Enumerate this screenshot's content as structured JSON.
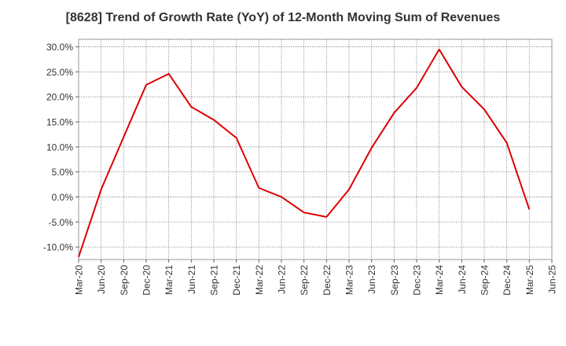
{
  "chart_data": {
    "type": "line",
    "title": "[8628]  Trend of Growth Rate (YoY) of 12-Month Moving Sum of Revenues",
    "xlabel": "",
    "ylabel": "",
    "x_tick_labels": [
      "Mar-20",
      "Jun-20",
      "Sep-20",
      "Dec-20",
      "Mar-21",
      "Jun-21",
      "Sep-21",
      "Dec-21",
      "Mar-22",
      "Jun-22",
      "Sep-22",
      "Dec-22",
      "Mar-23",
      "Jun-23",
      "Sep-23",
      "Dec-23",
      "Mar-24",
      "Jun-24",
      "Sep-24",
      "Dec-24",
      "Mar-25",
      "Jun-25"
    ],
    "y_tick_labels": [
      "30.0%",
      "25.0%",
      "20.0%",
      "15.0%",
      "10.0%",
      "5.0%",
      "0.0%",
      "-5.0%",
      "-10.0%"
    ],
    "y_ticks": [
      30,
      25,
      20,
      15,
      10,
      5,
      0,
      -5,
      -10
    ],
    "ylim": [
      -12.5,
      31.5
    ],
    "grid": true,
    "series": [
      {
        "color": "#dd0000",
        "x": [
          "Mar-20",
          "Jun-20",
          "Sep-20",
          "Dec-20",
          "Mar-21",
          "Jun-21",
          "Sep-21",
          "Dec-21",
          "Mar-22",
          "Jun-22",
          "Sep-22",
          "Dec-22",
          "Mar-23",
          "Jun-23",
          "Sep-23",
          "Dec-23",
          "Mar-24",
          "Jun-24",
          "Sep-24",
          "Dec-24",
          "Mar-25"
        ],
        "values": [
          -12.0,
          1.5,
          12.0,
          22.4,
          24.6,
          18.0,
          15.4,
          11.8,
          1.8,
          0.0,
          -3.1,
          -4.0,
          1.5,
          9.8,
          16.8,
          21.8,
          29.5,
          22.0,
          17.5,
          10.8,
          -2.5
        ]
      }
    ]
  }
}
